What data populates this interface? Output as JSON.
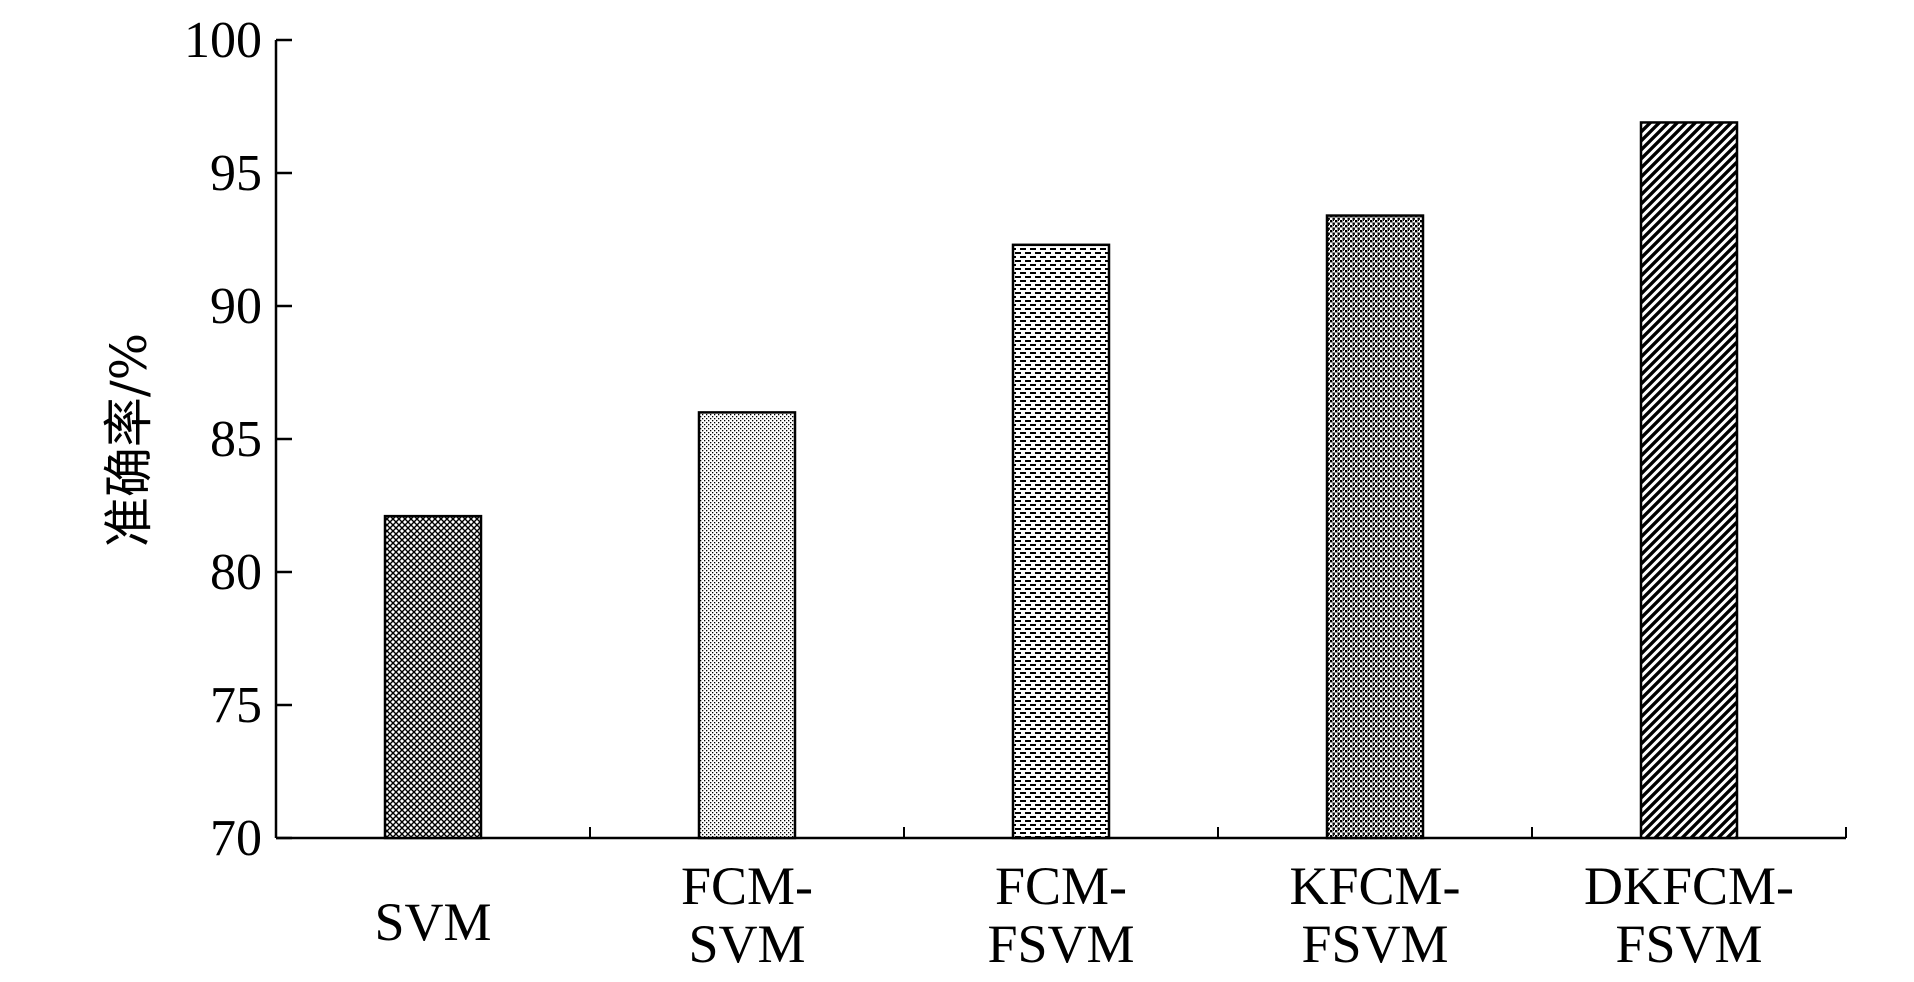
{
  "chart_data": {
    "type": "bar",
    "title": "",
    "xlabel": "",
    "ylabel": "准确率/%",
    "ylim": [
      70,
      100
    ],
    "yticks": [
      "70",
      "75",
      "80",
      "85",
      "90",
      "95",
      "100"
    ],
    "grid": false,
    "categories": [
      [
        "SVM"
      ],
      [
        "FCM-",
        "SVM"
      ],
      [
        "FCM-",
        "FSVM"
      ],
      [
        "KFCM-",
        "FSVM"
      ],
      [
        "DKFCM-",
        "FSVM"
      ]
    ],
    "values": [
      82.1,
      86.0,
      92.3,
      93.4,
      96.9
    ],
    "bar_patterns": [
      "crosshatch",
      "fine-dots",
      "dashes",
      "dense-dots",
      "diagonal"
    ]
  }
}
